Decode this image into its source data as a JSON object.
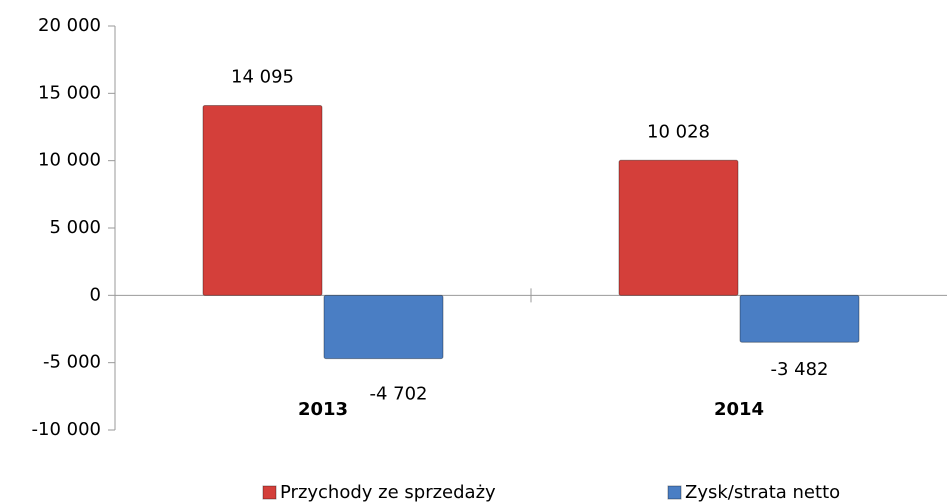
{
  "chart_data": {
    "type": "bar",
    "categories": [
      "2013",
      "2014"
    ],
    "series": [
      {
        "name": "Przychody ze sprzedaży",
        "color": "#d43f3a",
        "values": [
          14095,
          10028
        ],
        "value_labels": [
          "14 095",
          "10 028"
        ]
      },
      {
        "name": "Zysk/strata netto",
        "color": "#4a7ec4",
        "values": [
          -4702,
          -3482
        ],
        "value_labels": [
          "-4 702",
          "-3 482"
        ]
      }
    ],
    "ylim": [
      -10000,
      20000
    ],
    "yticks": [
      {
        "value": -10000,
        "label": "-10 000"
      },
      {
        "value": -5000,
        "label": "-5 000"
      },
      0,
      {
        "value": 5000,
        "label": "5 000"
      },
      {
        "value": 10000,
        "label": "10 000"
      },
      {
        "value": 15000,
        "label": "15 000"
      },
      {
        "value": 20000,
        "label": "20 000"
      }
    ],
    "legend": "bottom"
  }
}
